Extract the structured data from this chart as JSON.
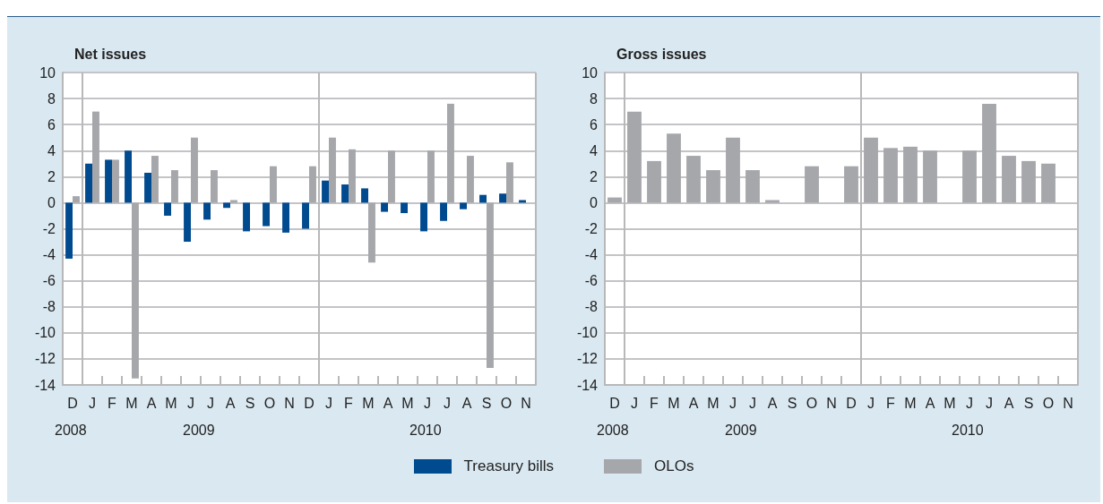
{
  "chart_data": [
    {
      "type": "bar",
      "title": "Net issues",
      "categories": [
        "D",
        "J",
        "F",
        "M",
        "A",
        "M",
        "J",
        "J",
        "A",
        "S",
        "O",
        "N",
        "D",
        "J",
        "F",
        "M",
        "A",
        "M",
        "J",
        "J",
        "A",
        "S",
        "O",
        "N"
      ],
      "series": [
        {
          "name": "Treasury bills",
          "color": "#004a8f",
          "values": [
            -4.3,
            3.0,
            3.3,
            4.0,
            2.3,
            -1.0,
            -3.0,
            -1.3,
            -0.4,
            -2.2,
            -1.8,
            -2.3,
            -2.0,
            1.7,
            1.4,
            1.1,
            -0.7,
            -0.8,
            -2.2,
            -1.4,
            -0.5,
            0.6,
            0.7,
            0.2
          ]
        },
        {
          "name": "OLOs",
          "color": "#a6a7ab",
          "values": [
            0.5,
            7.0,
            3.3,
            -13.5,
            3.6,
            2.5,
            5.0,
            2.5,
            0.2,
            null,
            2.8,
            null,
            2.8,
            5.0,
            4.1,
            -4.6,
            4.0,
            null,
            4.0,
            7.6,
            3.6,
            -12.7,
            3.1,
            null
          ]
        }
      ],
      "ylim": [
        -14,
        10
      ],
      "yticks": [
        -14,
        -12,
        -10,
        -8,
        -6,
        -4,
        -2,
        0,
        2,
        4,
        6,
        8,
        10
      ],
      "grid": true,
      "legend": "bottom",
      "annotations": [
        "2008",
        "2009",
        "2010"
      ]
    },
    {
      "type": "bar",
      "title": "Gross issues",
      "categories": [
        "D",
        "J",
        "F",
        "M",
        "A",
        "M",
        "J",
        "J",
        "A",
        "S",
        "O",
        "N",
        "D",
        "J",
        "F",
        "M",
        "A",
        "M",
        "J",
        "J",
        "A",
        "S",
        "O",
        "N"
      ],
      "series": [
        {
          "name": "OLOs",
          "color": "#a6a7ab",
          "values": [
            0.4,
            7.0,
            3.2,
            5.3,
            3.6,
            2.5,
            5.0,
            2.5,
            0.2,
            null,
            2.8,
            null,
            2.8,
            5.0,
            4.2,
            4.3,
            4.0,
            null,
            4.0,
            7.6,
            3.6,
            3.2,
            3.0,
            null
          ]
        }
      ],
      "ylim": [
        -14,
        10
      ],
      "yticks": [
        -14,
        -12,
        -10,
        -8,
        -6,
        -4,
        -2,
        0,
        2,
        4,
        6,
        8,
        10
      ],
      "grid": true,
      "legend": "bottom",
      "annotations": [
        "2008",
        "2009",
        "2010"
      ]
    }
  ]
}
